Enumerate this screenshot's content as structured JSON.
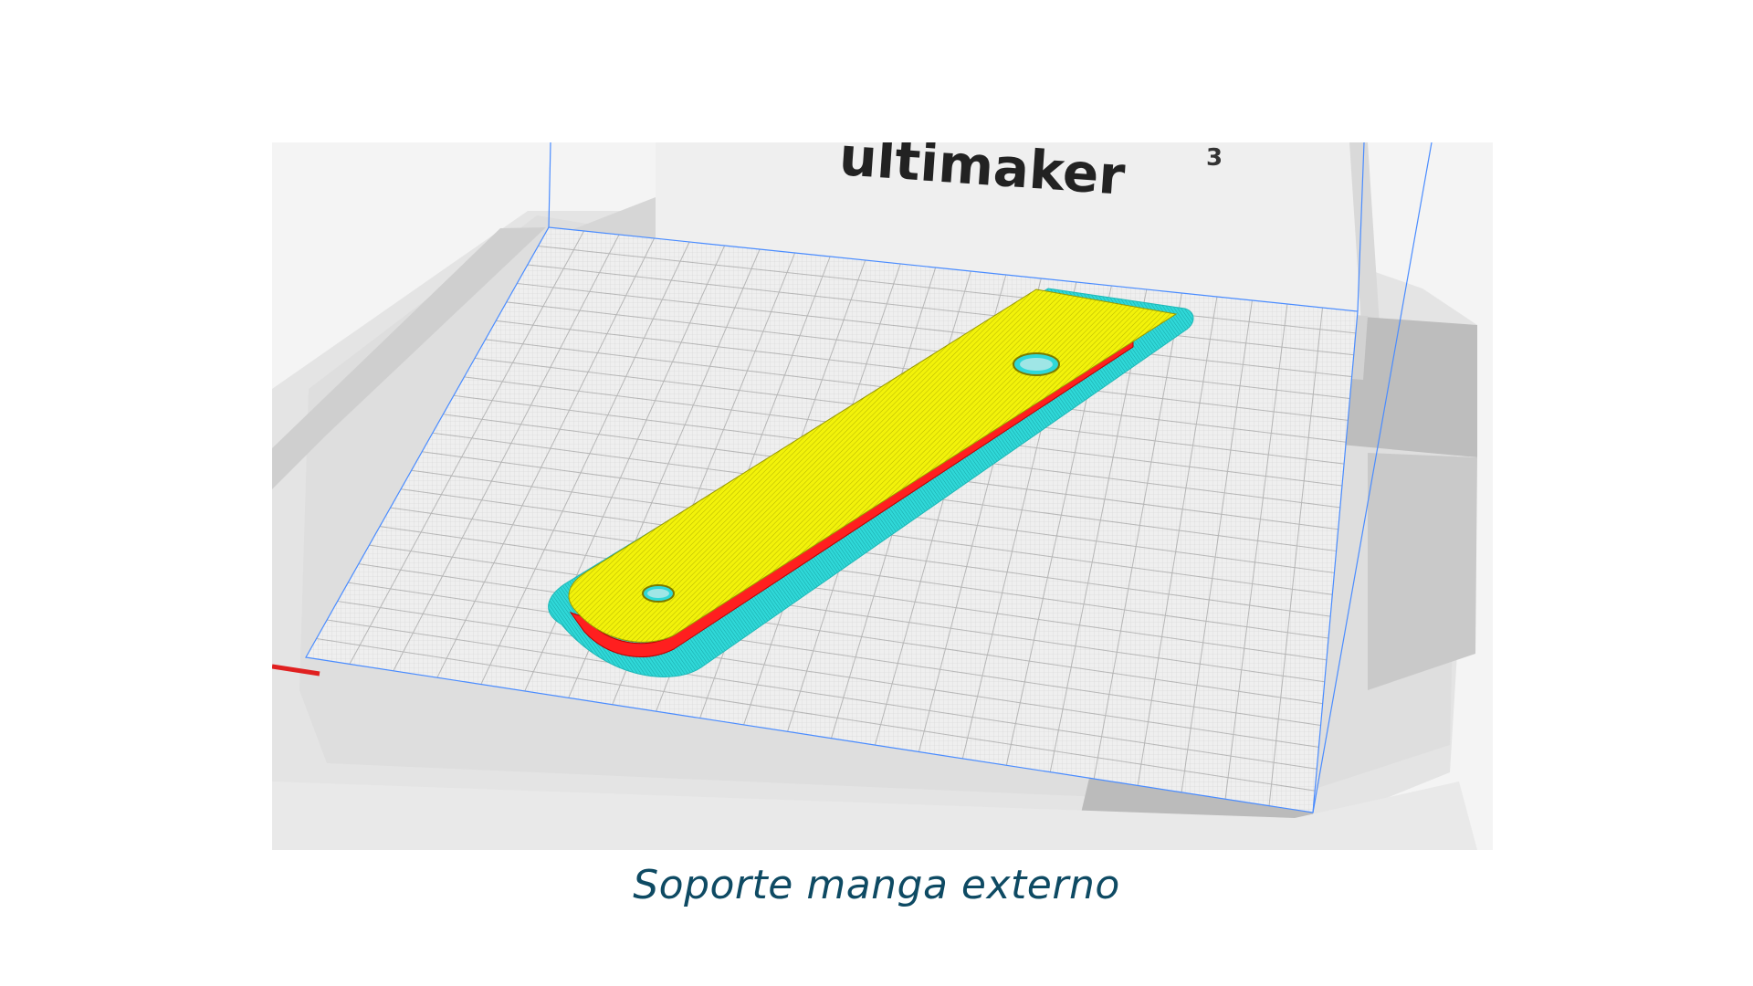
{
  "viewport": {
    "printer_brand": "ultimaker",
    "printer_model": "3",
    "colors": {
      "top_layer": "#f2f20a",
      "wall": "#ff1f1f",
      "brim": "#2fd8d8",
      "build_volume": "#4a8cff"
    }
  },
  "caption": {
    "text": "Soporte manga externo"
  }
}
